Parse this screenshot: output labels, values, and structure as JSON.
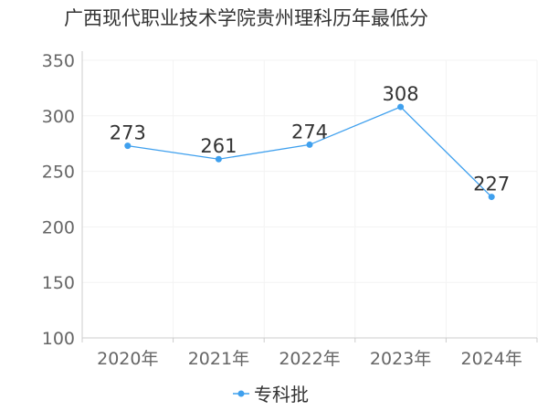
{
  "chart_data": {
    "type": "line",
    "title": "广西现代职业技术学院贵州理科历年最低分",
    "xlabel": "",
    "ylabel": "",
    "categories": [
      "2020年",
      "2021年",
      "2022年",
      "2023年",
      "2024年"
    ],
    "series": [
      {
        "name": "专科批",
        "values": [
          273,
          261,
          274,
          308,
          227
        ],
        "color": "#3fa0ee"
      }
    ],
    "ylim": [
      100,
      350
    ],
    "yticks": [
      100,
      150,
      200,
      250,
      300,
      350
    ],
    "grid": true,
    "legend": "bottom-center"
  }
}
